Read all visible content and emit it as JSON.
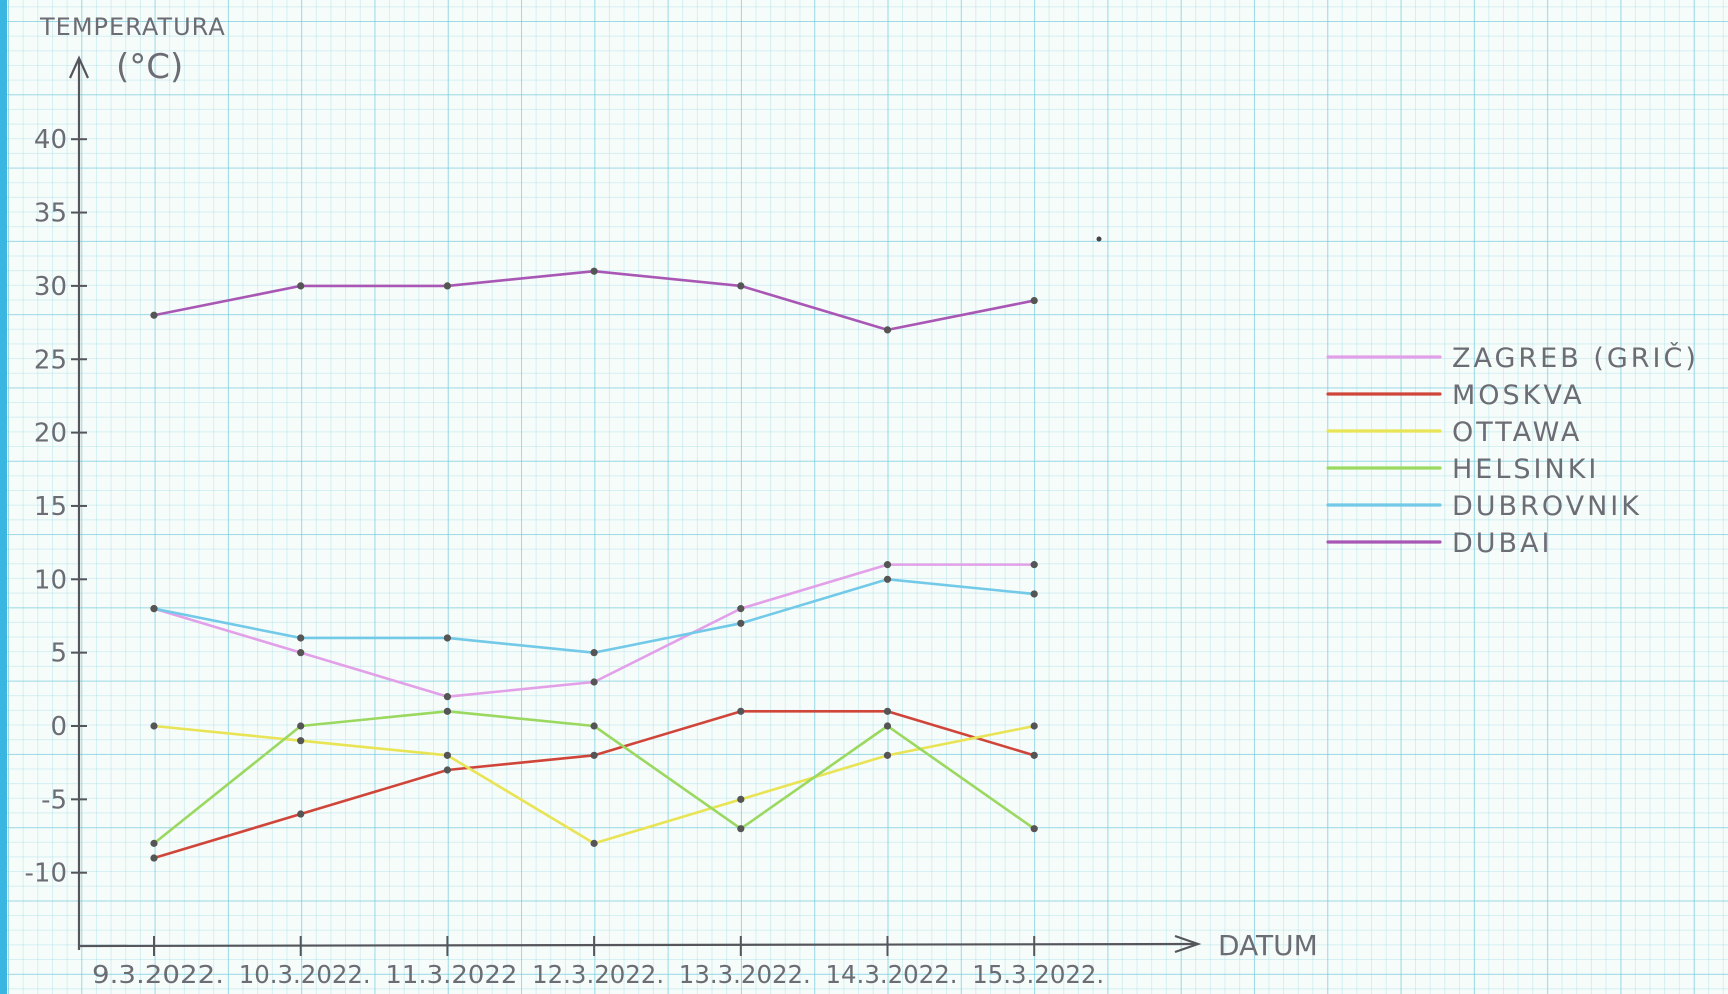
{
  "chart_data": {
    "type": "line",
    "ylabel_line1": "TEMPERATURA",
    "ylabel_line2": "(°C)",
    "xlabel": "DATUM",
    "categories": [
      "9.3.2022.",
      "10.3.2022.",
      "11.3.2022",
      "12.3.2022.",
      "13.3.2022.",
      "14.3.2022.",
      "15.3.2022."
    ],
    "ylim": [
      -15,
      45
    ],
    "yticks": [
      40,
      35,
      30,
      25,
      20,
      15,
      10,
      5,
      0,
      -5,
      -10
    ],
    "grid": true,
    "legend_position": "right",
    "series": [
      {
        "name": "ZAGREB (GRIČ)",
        "color": "#e2a0e8",
        "values": [
          8,
          5,
          2,
          3,
          8,
          11,
          11
        ]
      },
      {
        "name": "MOSKVA",
        "color": "#d0453a",
        "values": [
          -9,
          -6,
          -3,
          -2,
          1,
          1,
          -2
        ]
      },
      {
        "name": "OTTAWA",
        "color": "#e8e455",
        "values": [
          0,
          -1,
          -2,
          -8,
          -5,
          -2,
          0
        ]
      },
      {
        "name": "HELSINKI",
        "color": "#9ad860",
        "values": [
          -8,
          0,
          1,
          0,
          -7,
          0,
          -7
        ]
      },
      {
        "name": "DUBROVNIK",
        "color": "#72c9e8",
        "values": [
          8,
          6,
          6,
          5,
          7,
          10,
          9
        ]
      },
      {
        "name": "DUBAI",
        "color": "#a858b4",
        "values": [
          28,
          30,
          30,
          31,
          30,
          27,
          29
        ]
      }
    ]
  }
}
